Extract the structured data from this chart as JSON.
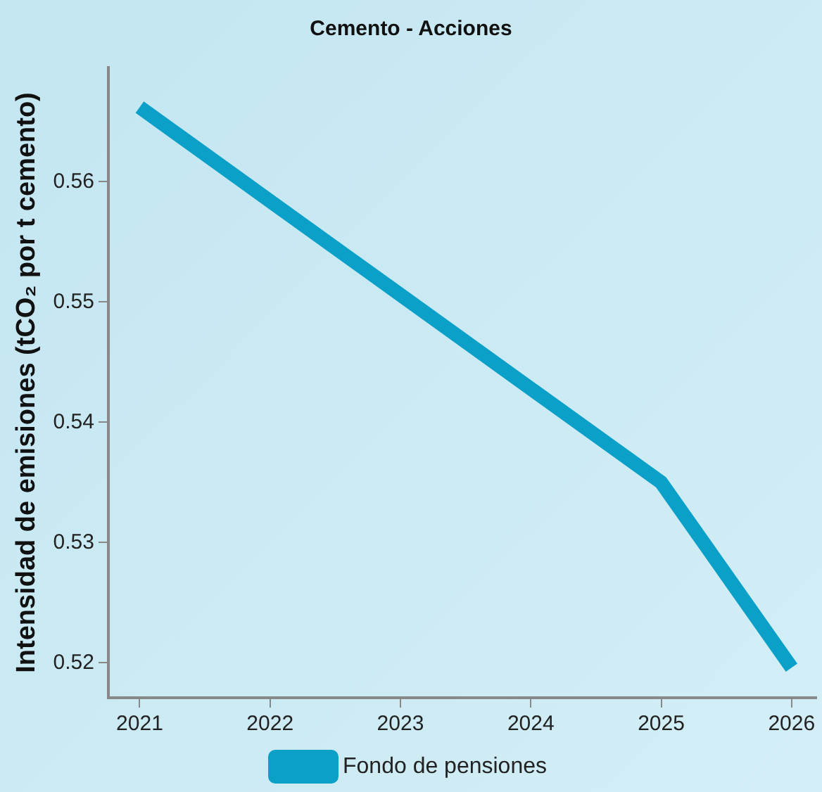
{
  "chart_data": {
    "type": "line",
    "title": "Cemento - Acciones",
    "ylabel": "Intensidad de emisiones (tCO₂ por t cemento)",
    "x": [
      2021,
      2022,
      2023,
      2024,
      2025,
      2026
    ],
    "series": [
      {
        "name": "Fondo de pensiones",
        "color": "#0aa0c8",
        "values": [
          0.5662,
          0.5584,
          0.5506,
          0.5428,
          0.535,
          0.5196
        ]
      }
    ],
    "xlim": [
      2020.76,
      2026.19
    ],
    "xticks": [
      2021,
      2022,
      2023,
      2024,
      2025,
      2026
    ],
    "ylim": [
      0.5171,
      0.5695
    ],
    "yticks": [
      0.52,
      0.53,
      0.54,
      0.55,
      0.56
    ],
    "grid": false,
    "legend": "bottom",
    "marker": "none",
    "line_style": "solid"
  }
}
